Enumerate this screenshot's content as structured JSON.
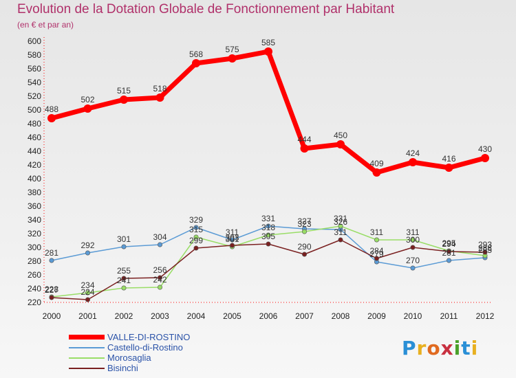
{
  "title": "Evolution de la Dotation Globale de Fonctionnement par Habitant",
  "subtitle": "(en € et par an)",
  "logo": {
    "text": "Proxiti",
    "colors": [
      "#2a8fd6",
      "#e8b020",
      "#e06a20",
      "#c83040",
      "#4aa02a",
      "#2a8fd6",
      "#e8b020"
    ]
  },
  "chart_data": {
    "type": "line",
    "x": [
      "2000",
      "2001",
      "2002",
      "2003",
      "2004",
      "2005",
      "2006",
      "2007",
      "2008",
      "2009",
      "2010",
      "2011",
      "2012"
    ],
    "ylim": [
      220,
      600
    ],
    "ytick_step": 20,
    "grid": false,
    "legend_position": "bottom-left",
    "series": [
      {
        "name": "VALLE-DI-ROSTINO",
        "color": "#ff0000",
        "values": [
          488,
          502,
          515,
          518,
          568,
          575,
          585,
          444,
          450,
          409,
          424,
          416,
          430
        ],
        "labels": [
          "488",
          "502",
          "515",
          "518",
          "568",
          "575",
          "585",
          "444",
          "450",
          "409",
          "424",
          "416",
          "430"
        ]
      },
      {
        "name": "Castello-di-Rostino",
        "color": "#5b9bd5",
        "values": [
          281,
          292,
          301,
          304,
          329,
          311,
          331,
          327,
          326,
          279,
          270,
          281,
          285
        ],
        "labels": [
          "281",
          "292",
          "301",
          "304",
          "329",
          "311",
          "331",
          "327",
          "326",
          "279",
          "270",
          "281",
          "285"
        ]
      },
      {
        "name": "Morosaglia",
        "color": "#99dd66",
        "values": [
          228,
          234,
          241,
          242,
          315,
          301,
          318,
          323,
          331,
          311,
          311,
          295,
          288
        ],
        "labels": [
          "228",
          "234",
          "241",
          "242",
          "315",
          "301",
          "318",
          "323",
          "331",
          "311",
          "311",
          "295",
          "288"
        ]
      },
      {
        "name": "Bisinchi",
        "color": "#7a2020",
        "values": [
          227,
          224,
          255,
          256,
          299,
          303,
          305,
          290,
          311,
          284,
          300,
          294,
          293
        ],
        "labels": [
          "227",
          "224",
          "255",
          "256",
          "299",
          "303",
          "305",
          "290",
          "311",
          "284",
          "300",
          "294",
          "293"
        ]
      }
    ]
  }
}
